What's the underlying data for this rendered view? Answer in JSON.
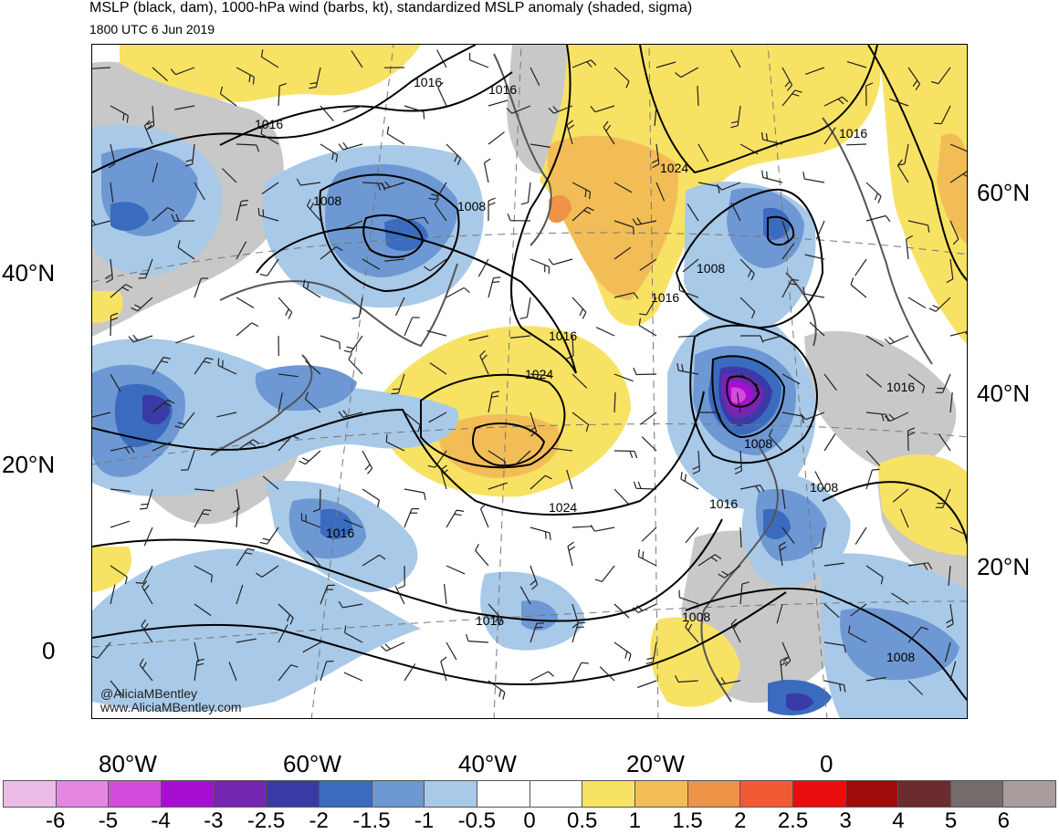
{
  "header": {
    "title": "MSLP (black, dam), 1000-hPa wind (barbs, kt), standardized MSLP anomaly (shaded, sigma)",
    "subtitle": "1800 UTC 6 Jun 2019"
  },
  "credits": {
    "handle": "@AliciaMBentley",
    "website": "www.AliciaMBentley.com"
  },
  "axes": {
    "left_lat_labels": [
      "40°N",
      "20°N",
      "0"
    ],
    "right_lat_labels": [
      "60°N",
      "40°N",
      "20°N"
    ],
    "bottom_lon_labels": [
      "80°W",
      "60°W",
      "40°W",
      "20°W",
      "0"
    ]
  },
  "isobar_labels": [
    "1016",
    "1016",
    "1016",
    "1008",
    "1008",
    "1024",
    "1016",
    "1008",
    "1016",
    "1024",
    "1016",
    "1008",
    "1024",
    "1016",
    "1016",
    "1016",
    "1008",
    "1008",
    "1008",
    "1016"
  ],
  "colorbar": {
    "tick_labels": [
      "-6",
      "-5",
      "-4",
      "-3",
      "-2.5",
      "-2",
      "-1.5",
      "-1",
      "-0.5",
      "0",
      "0.5",
      "1",
      "1.5",
      "2",
      "2.5",
      "3",
      "4",
      "5",
      "6"
    ],
    "colors": [
      "#ebbde6",
      "#e586e3",
      "#d54bdb",
      "#a70fd0",
      "#7425b1",
      "#3a3aa6",
      "#3a6bbf",
      "#6d98d3",
      "#a8c9e8",
      "#ffffff",
      "#ffffff",
      "#f8e264",
      "#f2bd57",
      "#ee9448",
      "#f05a34",
      "#e90d0d",
      "#a10a0a",
      "#6a2c2c",
      "#756b6b",
      "#a89c9c"
    ]
  },
  "colors": {
    "land_neutral": "#c8c8c8",
    "coast": "#555555",
    "isobar": "#000000"
  }
}
